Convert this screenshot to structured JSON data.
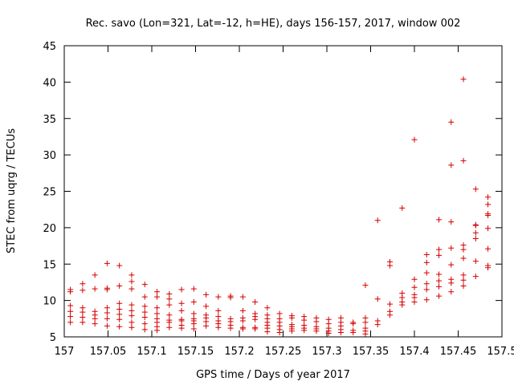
{
  "chart_data": {
    "type": "scatter",
    "title": "Rec. savo (Lon=321, Lat=-12, h=HE), days 156-157, 2017, window 002",
    "xlabel": "GPS time / Days of year 2017",
    "ylabel": "STEC from uqrg / TECUs",
    "xlim": [
      157,
      157.5
    ],
    "ylim": [
      5,
      45
    ],
    "xticks": [
      157,
      157.05,
      157.1,
      157.15,
      157.2,
      157.25,
      157.3,
      157.35,
      157.4,
      157.45,
      157.5
    ],
    "xtick_labels": [
      "157",
      "157.05",
      "157.1",
      "157.15",
      "157.2",
      "157.25",
      "157.3",
      "157.35",
      "157.4",
      "157.45",
      "157.5"
    ],
    "yticks": [
      5,
      10,
      15,
      20,
      25,
      30,
      35,
      40,
      45
    ],
    "ytick_labels": [
      "5",
      "10",
      "15",
      "20",
      "25",
      "30",
      "35",
      "40",
      "45"
    ],
    "grid": false,
    "legend": "none",
    "marker": "plus",
    "color": "#d40000",
    "series": [
      {
        "points": [
          [
            157.007,
            11.5
          ],
          [
            157.007,
            11.2
          ],
          [
            157.007,
            9.3
          ],
          [
            157.007,
            8.5
          ],
          [
            157.007,
            7.8
          ],
          [
            157.007,
            7.0
          ],
          [
            157.021,
            12.3
          ],
          [
            157.021,
            11.4
          ],
          [
            157.021,
            9.0
          ],
          [
            157.021,
            8.4
          ],
          [
            157.021,
            7.7
          ],
          [
            157.021,
            7.0
          ],
          [
            157.035,
            13.5
          ],
          [
            157.035,
            11.6
          ],
          [
            157.035,
            8.5
          ],
          [
            157.035,
            8.0
          ],
          [
            157.035,
            7.5
          ],
          [
            157.035,
            6.8
          ],
          [
            157.049,
            15.1
          ],
          [
            157.049,
            11.7
          ],
          [
            157.049,
            11.5
          ],
          [
            157.049,
            9.0
          ],
          [
            157.049,
            8.3
          ],
          [
            157.049,
            7.5
          ],
          [
            157.049,
            6.5
          ],
          [
            157.063,
            14.8
          ],
          [
            157.063,
            12.0
          ],
          [
            157.063,
            9.6
          ],
          [
            157.063,
            8.8
          ],
          [
            157.063,
            8.1
          ],
          [
            157.063,
            7.4
          ],
          [
            157.063,
            6.4
          ],
          [
            157.077,
            13.5
          ],
          [
            157.077,
            12.6
          ],
          [
            157.077,
            11.6
          ],
          [
            157.077,
            9.4
          ],
          [
            157.077,
            8.6
          ],
          [
            157.077,
            7.9
          ],
          [
            157.077,
            7.0
          ],
          [
            157.077,
            6.3
          ],
          [
            157.092,
            12.2
          ],
          [
            157.092,
            10.5
          ],
          [
            157.092,
            9.2
          ],
          [
            157.092,
            8.4
          ],
          [
            157.092,
            7.7
          ],
          [
            157.092,
            6.8
          ],
          [
            157.092,
            6.0
          ],
          [
            157.106,
            11.2
          ],
          [
            157.106,
            10.5
          ],
          [
            157.106,
            9.0
          ],
          [
            157.106,
            8.2
          ],
          [
            157.106,
            7.5
          ],
          [
            157.106,
            7.0
          ],
          [
            157.106,
            6.4
          ],
          [
            157.106,
            5.9
          ],
          [
            157.12,
            10.9
          ],
          [
            157.12,
            10.2
          ],
          [
            157.12,
            9.4
          ],
          [
            157.12,
            8.0
          ],
          [
            157.12,
            7.3
          ],
          [
            157.12,
            7.0
          ],
          [
            157.12,
            6.3
          ],
          [
            157.134,
            11.5
          ],
          [
            157.134,
            9.6
          ],
          [
            157.134,
            8.6
          ],
          [
            157.134,
            7.4
          ],
          [
            157.134,
            7.2
          ],
          [
            157.134,
            6.6
          ],
          [
            157.134,
            6.2
          ],
          [
            157.148,
            11.6
          ],
          [
            157.148,
            9.8
          ],
          [
            157.148,
            8.2
          ],
          [
            157.148,
            7.5
          ],
          [
            157.148,
            7.2
          ],
          [
            157.148,
            6.8
          ],
          [
            157.148,
            6.1
          ],
          [
            157.162,
            10.8
          ],
          [
            157.162,
            9.2
          ],
          [
            157.162,
            8.0
          ],
          [
            157.162,
            7.6
          ],
          [
            157.162,
            7.1
          ],
          [
            157.162,
            6.5
          ],
          [
            157.176,
            10.5
          ],
          [
            157.176,
            8.6
          ],
          [
            157.176,
            7.8
          ],
          [
            157.176,
            7.2
          ],
          [
            157.176,
            6.8
          ],
          [
            157.176,
            6.3
          ],
          [
            157.19,
            10.6
          ],
          [
            157.19,
            10.4
          ],
          [
            157.19,
            7.5
          ],
          [
            157.19,
            7.1
          ],
          [
            157.19,
            6.6
          ],
          [
            157.19,
            6.2
          ],
          [
            157.204,
            10.5
          ],
          [
            157.204,
            8.6
          ],
          [
            157.204,
            7.6
          ],
          [
            157.204,
            7.2
          ],
          [
            157.204,
            6.3
          ],
          [
            157.204,
            6.1
          ],
          [
            157.218,
            9.8
          ],
          [
            157.218,
            8.2
          ],
          [
            157.218,
            7.8
          ],
          [
            157.218,
            7.4
          ],
          [
            157.218,
            6.3
          ],
          [
            157.218,
            6.1
          ],
          [
            157.232,
            9.0
          ],
          [
            157.232,
            8.0
          ],
          [
            157.232,
            7.5
          ],
          [
            157.232,
            7.0
          ],
          [
            157.232,
            6.6
          ],
          [
            157.232,
            6.2
          ],
          [
            157.232,
            5.7
          ],
          [
            157.246,
            8.2
          ],
          [
            157.246,
            7.5
          ],
          [
            157.246,
            7.0
          ],
          [
            157.246,
            6.5
          ],
          [
            157.246,
            6.0
          ],
          [
            157.246,
            5.6
          ],
          [
            157.26,
            7.9
          ],
          [
            157.26,
            7.6
          ],
          [
            157.26,
            6.7
          ],
          [
            157.26,
            6.4
          ],
          [
            157.26,
            6.1
          ],
          [
            157.26,
            5.8
          ],
          [
            157.274,
            7.8
          ],
          [
            157.274,
            7.3
          ],
          [
            157.274,
            6.6
          ],
          [
            157.274,
            6.2
          ],
          [
            157.274,
            5.9
          ],
          [
            157.288,
            7.6
          ],
          [
            157.288,
            7.1
          ],
          [
            157.288,
            6.4
          ],
          [
            157.288,
            6.1
          ],
          [
            157.288,
            5.8
          ],
          [
            157.302,
            7.4
          ],
          [
            157.302,
            6.8
          ],
          [
            157.302,
            6.2
          ],
          [
            157.302,
            5.8
          ],
          [
            157.302,
            5.5
          ],
          [
            157.316,
            7.6
          ],
          [
            157.316,
            7.0
          ],
          [
            157.316,
            6.5
          ],
          [
            157.316,
            6.0
          ],
          [
            157.316,
            5.6
          ],
          [
            157.33,
            7.0
          ],
          [
            157.33,
            6.8
          ],
          [
            157.33,
            5.9
          ],
          [
            157.33,
            5.6
          ],
          [
            157.344,
            12.1
          ],
          [
            157.344,
            7.6
          ],
          [
            157.344,
            7.0
          ],
          [
            157.344,
            6.2
          ],
          [
            157.344,
            5.8
          ],
          [
            157.344,
            5.4
          ],
          [
            157.358,
            21.0
          ],
          [
            157.358,
            10.2
          ],
          [
            157.358,
            7.2
          ],
          [
            157.358,
            6.7
          ],
          [
            157.372,
            15.3
          ],
          [
            157.372,
            14.8
          ],
          [
            157.372,
            9.5
          ],
          [
            157.372,
            8.5
          ],
          [
            157.372,
            8.0
          ],
          [
            157.386,
            22.7
          ],
          [
            157.386,
            11.0
          ],
          [
            157.386,
            10.4
          ],
          [
            157.386,
            9.8
          ],
          [
            157.386,
            9.4
          ],
          [
            157.4,
            32.1
          ],
          [
            157.4,
            12.9
          ],
          [
            157.4,
            11.8
          ],
          [
            157.4,
            10.8
          ],
          [
            157.4,
            10.4
          ],
          [
            157.4,
            9.8
          ],
          [
            157.414,
            16.3
          ],
          [
            157.414,
            15.2
          ],
          [
            157.414,
            13.8
          ],
          [
            157.414,
            12.3
          ],
          [
            157.414,
            11.5
          ],
          [
            157.414,
            10.1
          ],
          [
            157.428,
            21.1
          ],
          [
            157.428,
            17.0
          ],
          [
            157.428,
            16.2
          ],
          [
            157.428,
            13.6
          ],
          [
            157.428,
            12.7
          ],
          [
            157.428,
            11.9
          ],
          [
            157.428,
            10.6
          ],
          [
            157.442,
            34.5
          ],
          [
            157.442,
            28.6
          ],
          [
            157.442,
            20.8
          ],
          [
            157.442,
            17.2
          ],
          [
            157.442,
            14.9
          ],
          [
            157.442,
            12.9
          ],
          [
            157.442,
            12.4
          ],
          [
            157.442,
            11.2
          ],
          [
            157.456,
            40.4
          ],
          [
            157.456,
            29.2
          ],
          [
            157.456,
            17.6
          ],
          [
            157.456,
            17.0
          ],
          [
            157.456,
            15.8
          ],
          [
            157.456,
            13.5
          ],
          [
            157.456,
            12.8
          ],
          [
            157.456,
            12.0
          ],
          [
            157.47,
            25.3
          ],
          [
            157.47,
            20.4
          ],
          [
            157.47,
            20.3
          ],
          [
            157.47,
            19.3
          ],
          [
            157.47,
            18.5
          ],
          [
            157.47,
            15.4
          ],
          [
            157.47,
            13.3
          ],
          [
            157.484,
            24.2
          ],
          [
            157.484,
            23.2
          ],
          [
            157.484,
            21.9
          ],
          [
            157.484,
            21.7
          ],
          [
            157.484,
            19.9
          ],
          [
            157.484,
            17.1
          ],
          [
            157.484,
            14.8
          ],
          [
            157.484,
            14.5
          ]
        ]
      }
    ]
  }
}
